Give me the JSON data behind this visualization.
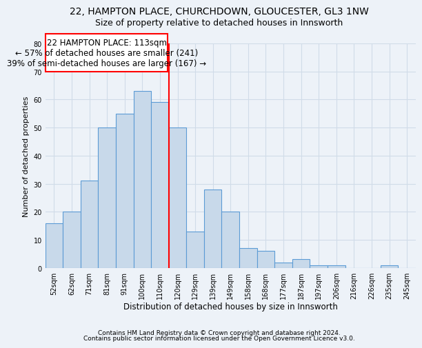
{
  "title1": "22, HAMPTON PLACE, CHURCHDOWN, GLOUCESTER, GL3 1NW",
  "title2": "Size of property relative to detached houses in Innsworth",
  "xlabel": "Distribution of detached houses by size in Innsworth",
  "ylabel": "Number of detached properties",
  "categories": [
    "52sqm",
    "62sqm",
    "71sqm",
    "81sqm",
    "91sqm",
    "100sqm",
    "110sqm",
    "120sqm",
    "129sqm",
    "139sqm",
    "149sqm",
    "158sqm",
    "168sqm",
    "177sqm",
    "187sqm",
    "197sqm",
    "206sqm",
    "216sqm",
    "226sqm",
    "235sqm",
    "245sqm"
  ],
  "values": [
    16,
    20,
    31,
    50,
    55,
    63,
    59,
    50,
    13,
    28,
    20,
    7,
    6,
    2,
    3,
    1,
    1,
    0,
    0,
    1,
    0
  ],
  "bar_color": "#c8d9ea",
  "bar_edge_color": "#5b9bd5",
  "red_line_index": 6,
  "annotation_line1": "22 HAMPTON PLACE: 113sqm",
  "annotation_line2": "← 57% of detached houses are smaller (241)",
  "annotation_line3": "39% of semi-detached houses are larger (167) →",
  "ylim": [
    0,
    80
  ],
  "yticks": [
    0,
    10,
    20,
    30,
    40,
    50,
    60,
    70,
    80
  ],
  "footer_line1": "Contains HM Land Registry data © Crown copyright and database right 2024.",
  "footer_line2": "Contains public sector information licensed under the Open Government Licence v3.0.",
  "bg_color": "#edf2f8",
  "plot_bg_color": "#edf2f8",
  "grid_color": "#d0dce8",
  "title1_fontsize": 10,
  "title2_fontsize": 9,
  "xlabel_fontsize": 8.5,
  "ylabel_fontsize": 8,
  "tick_fontsize": 7,
  "footer_fontsize": 6.5,
  "annotation_fontsize": 8.5
}
